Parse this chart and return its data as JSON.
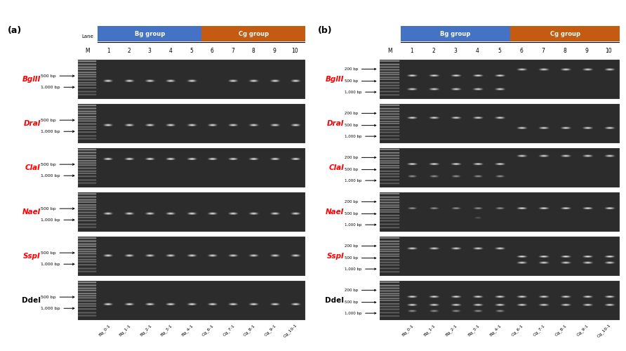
{
  "panel_a_label": "(a)",
  "panel_b_label": "(b)",
  "bg_group_color": "#4472C4",
  "cg_group_color": "#C55A11",
  "bg_group_label": "Bg group",
  "cg_group_label": "Cg group",
  "lane_labels": [
    "M",
    "1",
    "2",
    "3",
    "4",
    "5",
    "6",
    "7",
    "8",
    "9",
    "10"
  ],
  "x_tick_labels": [
    "Bg_0-1",
    "Bg_1-1",
    "Bg_2-1",
    "Bg_3-1",
    "Bg_4-1",
    "Cg_6-1",
    "Cg_7-1",
    "Cg_8-1",
    "Cg_9-1",
    "Cg_10-1"
  ],
  "enzymes": [
    "BglII",
    "DraI",
    "ClaI",
    "NaeI",
    "SspI",
    "DdeI"
  ],
  "enzymes_italic": [
    true,
    true,
    true,
    true,
    true,
    false
  ],
  "gel_bg": 45,
  "band_bright": 230,
  "band_mid": 160,
  "marker_bright": 140,
  "bg_color": "#ffffff",
  "gel_border_color": "#ffffff"
}
